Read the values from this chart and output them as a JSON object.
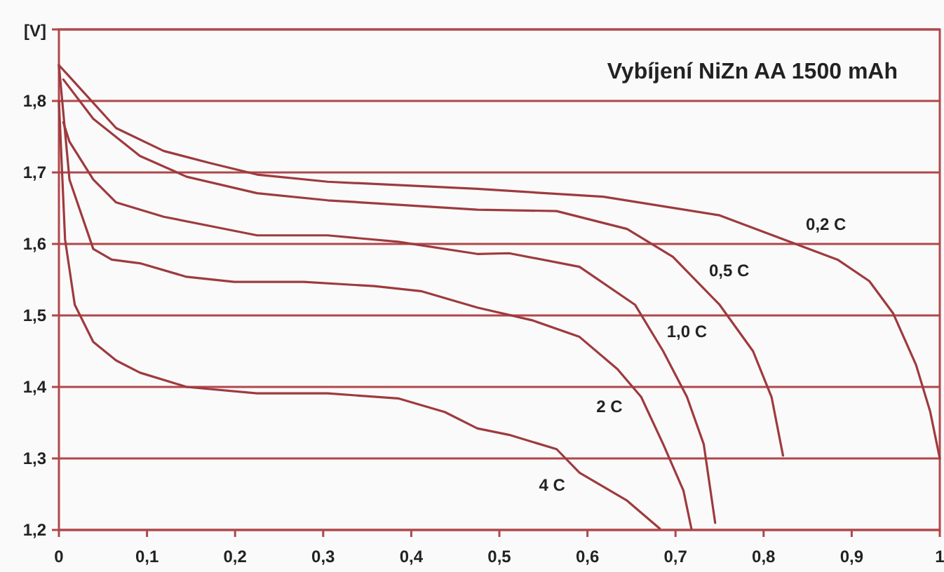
{
  "chart_data": {
    "type": "line",
    "title": "Vybíjení NiZn AA 1500 mAh",
    "ylabel": "[V]",
    "xlim": [
      0,
      1
    ],
    "ylim": [
      1.2,
      1.9
    ],
    "xticks": [
      0,
      {
        "value": 0.1,
        "label": "0,1"
      },
      {
        "value": 0.2,
        "label": "0,2"
      },
      {
        "value": 0.3,
        "label": "0,3"
      },
      {
        "value": 0.4,
        "label": "0,4"
      },
      {
        "value": 0.5,
        "label": "0,5"
      },
      {
        "value": 0.6,
        "label": "0,6"
      },
      {
        "value": 0.7,
        "label": "0,7"
      },
      {
        "value": 0.8,
        "label": "0,8"
      },
      {
        "value": 0.9,
        "label": "0,9"
      },
      1
    ],
    "yticks": [
      {
        "value": 1.2,
        "label": "1,2"
      },
      {
        "value": 1.3,
        "label": "1,3"
      },
      {
        "value": 1.4,
        "label": "1,4"
      },
      {
        "value": 1.5,
        "label": "1,5"
      },
      {
        "value": 1.6,
        "label": "1,6"
      },
      {
        "value": 1.7,
        "label": "1,7"
      },
      {
        "value": 1.8,
        "label": "1,8"
      },
      {
        "value": 1.9,
        "label": null
      }
    ],
    "grid": "y",
    "marker": "none",
    "line_style": "solid",
    "series": [
      {
        "name": "0,2 C",
        "color": "#9e3a3e",
        "x": [
          0,
          0.012,
          0.065,
          0.119,
          0.172,
          0.225,
          0.305,
          0.475,
          0.618,
          0.75,
          0.83,
          0.884,
          0.92,
          0.947,
          0.973,
          0.989,
          1.0
        ],
        "values": [
          1.85,
          1.834,
          1.762,
          1.73,
          1.713,
          1.697,
          1.687,
          1.677,
          1.666,
          1.64,
          1.603,
          1.578,
          1.548,
          1.503,
          1.431,
          1.366,
          1.3
        ]
      },
      {
        "name": "0,5 C",
        "color": "#9e3a3e",
        "x": [
          0.005,
          0.039,
          0.092,
          0.145,
          0.225,
          0.305,
          0.475,
          0.565,
          0.645,
          0.697,
          0.75,
          0.788,
          0.809,
          0.822
        ],
        "values": [
          1.83,
          1.775,
          1.723,
          1.694,
          1.671,
          1.661,
          1.648,
          1.646,
          1.621,
          1.582,
          1.515,
          1.45,
          1.386,
          1.304
        ]
      },
      {
        "name": "1,0 C",
        "color": "#9e3a3e",
        "x": [
          0.005,
          0.012,
          0.039,
          0.065,
          0.119,
          0.172,
          0.225,
          0.305,
          0.385,
          0.475,
          0.511,
          0.591,
          0.654,
          0.686,
          0.713,
          0.732,
          0.745
        ],
        "values": [
          1.77,
          1.743,
          1.69,
          1.658,
          1.638,
          1.625,
          1.612,
          1.612,
          1.603,
          1.586,
          1.587,
          1.568,
          1.515,
          1.45,
          1.386,
          1.32,
          1.21
        ]
      },
      {
        "name": "2 C",
        "color": "#9e3a3e",
        "x": [
          0,
          0.012,
          0.039,
          0.06,
          0.092,
          0.145,
          0.199,
          0.278,
          0.358,
          0.411,
          0.475,
          0.538,
          0.591,
          0.634,
          0.661,
          0.686,
          0.709,
          0.718
        ],
        "values": [
          1.85,
          1.69,
          1.593,
          1.578,
          1.573,
          1.554,
          1.547,
          1.547,
          1.541,
          1.534,
          1.511,
          1.493,
          1.47,
          1.425,
          1.386,
          1.32,
          1.255,
          1.202
        ]
      },
      {
        "name": "4 C",
        "color": "#9e3a3e",
        "x": [
          0,
          0.007,
          0.018,
          0.039,
          0.065,
          0.092,
          0.145,
          0.225,
          0.305,
          0.385,
          0.438,
          0.475,
          0.511,
          0.565,
          0.591,
          0.645,
          0.682
        ],
        "values": [
          1.8,
          1.606,
          1.515,
          1.463,
          1.437,
          1.42,
          1.4,
          1.391,
          1.391,
          1.384,
          1.365,
          1.342,
          1.333,
          1.313,
          1.28,
          1.241,
          1.202
        ]
      }
    ]
  }
}
